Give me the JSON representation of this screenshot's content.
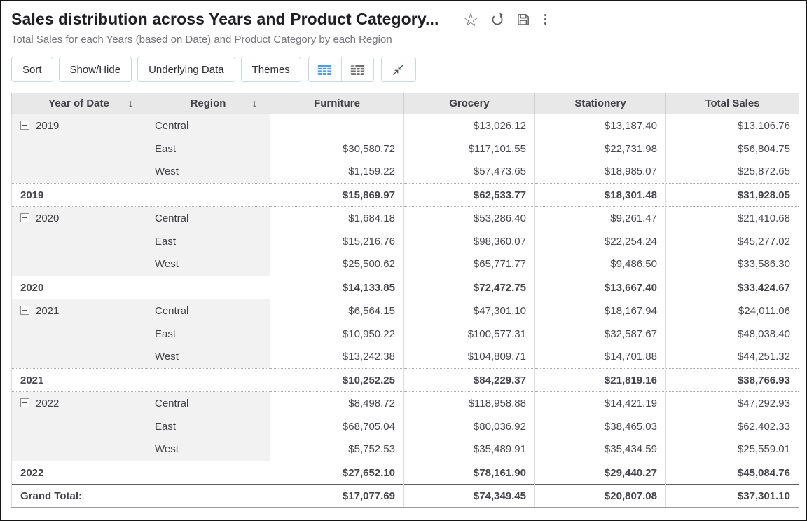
{
  "header": {
    "title": "Sales distribution across Years and Product Category...",
    "subtitle": "Total Sales for each Years (based on Date) and Product Category by each Region",
    "actions": [
      "favorite-star-icon",
      "refresh-icon",
      "save-icon",
      "more-options-kebab-icon"
    ]
  },
  "icons": {
    "star": "☆",
    "sort_arrow": "↓"
  },
  "colors": {
    "accent_blue": "#4f9ce8",
    "header_row_bg": "#e8e8e8",
    "group_cell_bg": "#f2f2f2",
    "total_row_bg": "#e1e1e1",
    "button_border": "#ccd6e3",
    "frame_border": "#141414"
  },
  "toolbar": {
    "buttons": [
      "Sort",
      "Show/Hide",
      "Underlying Data",
      "Themes"
    ],
    "view_switch": [
      {
        "name": "table-view",
        "active": true
      },
      {
        "name": "pivot-view",
        "active": false
      }
    ],
    "collapse_button": "collapse-icon"
  },
  "table": {
    "columns": [
      "Year of Date",
      "Region",
      "Furniture",
      "Grocery",
      "Stationery",
      "Total Sales"
    ],
    "sorted_columns": [
      "Year of Date",
      "Region"
    ],
    "rows": [
      {
        "type": "data",
        "year": "2019",
        "region": "Central",
        "values": [
          "",
          "$13,026.12",
          "$13,187.40",
          "$13,106.76"
        ]
      },
      {
        "type": "data",
        "year": "",
        "region": "East",
        "values": [
          "$30,580.72",
          "$117,101.55",
          "$22,731.98",
          "$56,804.75"
        ]
      },
      {
        "type": "data",
        "year": "",
        "region": "West",
        "values": [
          "$1,159.22",
          "$57,473.65",
          "$18,985.07",
          "$25,872.65"
        ]
      },
      {
        "type": "total",
        "label": "2019",
        "values": [
          "$15,869.97",
          "$62,533.77",
          "$18,301.48",
          "$31,928.05"
        ]
      },
      {
        "type": "data",
        "year": "2020",
        "region": "Central",
        "values": [
          "$1,684.18",
          "$53,286.40",
          "$9,261.47",
          "$21,410.68"
        ]
      },
      {
        "type": "data",
        "year": "",
        "region": "East",
        "values": [
          "$15,216.76",
          "$98,360.07",
          "$22,254.24",
          "$45,277.02"
        ]
      },
      {
        "type": "data",
        "year": "",
        "region": "West",
        "values": [
          "$25,500.62",
          "$65,771.77",
          "$9,486.50",
          "$33,586.30"
        ]
      },
      {
        "type": "total",
        "label": "2020",
        "values": [
          "$14,133.85",
          "$72,472.75",
          "$13,667.40",
          "$33,424.67"
        ]
      },
      {
        "type": "data",
        "year": "2021",
        "region": "Central",
        "values": [
          "$6,564.15",
          "$47,301.10",
          "$18,167.94",
          "$24,011.06"
        ]
      },
      {
        "type": "data",
        "year": "",
        "region": "East",
        "values": [
          "$10,950.22",
          "$100,577.31",
          "$32,587.67",
          "$48,038.40"
        ]
      },
      {
        "type": "data",
        "year": "",
        "region": "West",
        "values": [
          "$13,242.38",
          "$104,809.71",
          "$14,701.88",
          "$44,251.32"
        ]
      },
      {
        "type": "total",
        "label": "2021",
        "values": [
          "$10,252.25",
          "$84,229.37",
          "$21,819.16",
          "$38,766.93"
        ]
      },
      {
        "type": "data",
        "year": "2022",
        "region": "Central",
        "values": [
          "$8,498.72",
          "$118,958.88",
          "$14,421.19",
          "$47,292.93"
        ]
      },
      {
        "type": "data",
        "year": "",
        "region": "East",
        "values": [
          "$68,705.04",
          "$80,036.92",
          "$38,465.03",
          "$62,402.33"
        ]
      },
      {
        "type": "data",
        "year": "",
        "region": "West",
        "values": [
          "$5,752.53",
          "$35,489.91",
          "$35,434.59",
          "$25,559.01"
        ]
      },
      {
        "type": "total",
        "label": "2022",
        "values": [
          "$27,652.10",
          "$78,161.90",
          "$29,440.27",
          "$45,084.76"
        ]
      },
      {
        "type": "grand",
        "label": "Grand Total:",
        "values": [
          "$17,077.69",
          "$74,349.45",
          "$20,807.08",
          "$37,301.10"
        ]
      }
    ]
  }
}
